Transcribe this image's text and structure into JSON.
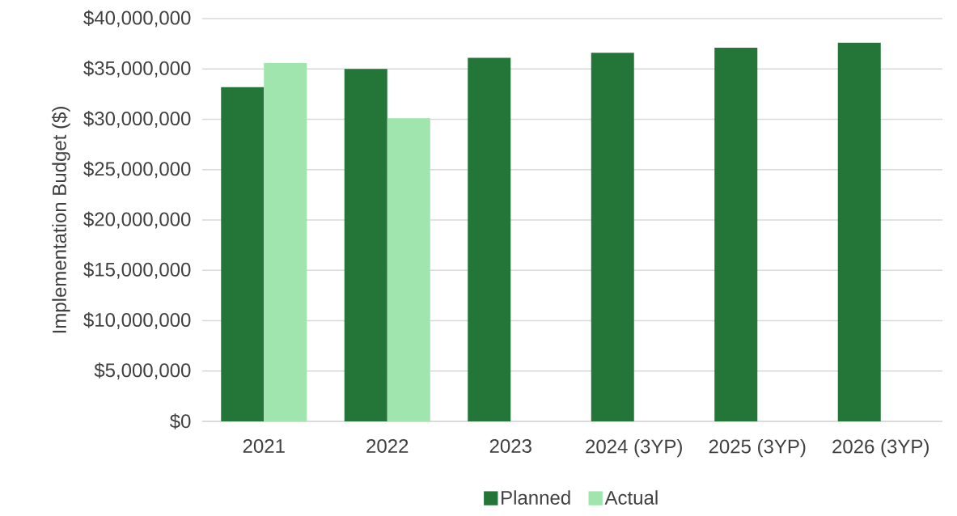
{
  "chart_data": {
    "type": "bar",
    "ylabel": "Implementation Budget ($)",
    "categories": [
      "2021",
      "2022",
      "2023",
      "2024 (3YP)",
      "2025 (3YP)",
      "2026 (3YP)"
    ],
    "series": [
      {
        "name": "Planned",
        "color": "#237538",
        "values": [
          33200000,
          35000000,
          36100000,
          36600000,
          37100000,
          37600000
        ]
      },
      {
        "name": "Actual",
        "color": "#9fe5ad",
        "values": [
          35600000,
          30100000,
          null,
          null,
          null,
          null
        ]
      }
    ],
    "ylim": [
      0,
      40000000
    ],
    "yticks": [
      {
        "value": 0,
        "label": "$0"
      },
      {
        "value": 5000000,
        "label": "$5,000,000"
      },
      {
        "value": 10000000,
        "label": "$10,000,000"
      },
      {
        "value": 15000000,
        "label": "$15,000,000"
      },
      {
        "value": 20000000,
        "label": "$20,000,000"
      },
      {
        "value": 25000000,
        "label": "$25,000,000"
      },
      {
        "value": 30000000,
        "label": "$30,000,000"
      },
      {
        "value": 35000000,
        "label": "$35,000,000"
      },
      {
        "value": 40000000,
        "label": "$40,000,000"
      }
    ],
    "grid": "y",
    "legend": "bottom"
  }
}
